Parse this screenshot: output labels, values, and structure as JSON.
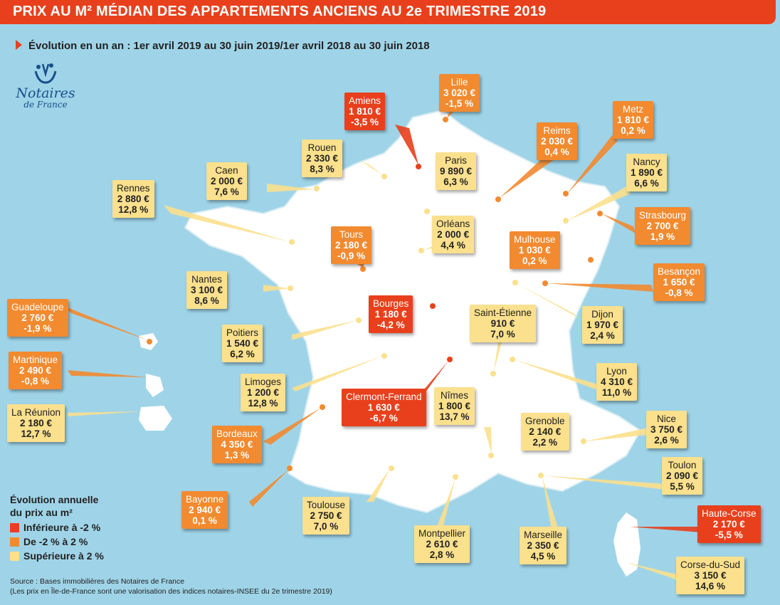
{
  "title": "PRIX AU M² MÉDIAN DES APPARTEMENTS ANCIENS AU 2e TRIMESTRE 2019",
  "subtitle": "Évolution en un an : 1er avril 2019 au 30 juin 2019/1er avril 2018 au 30 juin 2018",
  "logo": {
    "line1": "Notaires",
    "line2": "de France"
  },
  "colors": {
    "red": "#e8401c",
    "orange": "#f28a30",
    "yellow": "#fbe08d",
    "sea": "#9fd4e8",
    "land": "#ffffff"
  },
  "cities": [
    {
      "name": "Amiens",
      "price": "1 810 €",
      "change": "-3,5 %",
      "category": "red"
    },
    {
      "name": "Lille",
      "price": "3 020 €",
      "change": "-1,5 %",
      "category": "orange"
    },
    {
      "name": "Metz",
      "price": "1 810 €",
      "change": "0,2 %",
      "category": "orange"
    },
    {
      "name": "Reims",
      "price": "2 030 €",
      "change": "0,4 %",
      "category": "orange"
    },
    {
      "name": "Rouen",
      "price": "2 330 €",
      "change": "8,3 %",
      "category": "yellow"
    },
    {
      "name": "Paris",
      "price": "9 890 €",
      "change": "6,3 %",
      "category": "yellow"
    },
    {
      "name": "Caen",
      "price": "2 000 €",
      "change": "7,6 %",
      "category": "yellow"
    },
    {
      "name": "Nancy",
      "price": "1 890 €",
      "change": "6,6 %",
      "category": "yellow"
    },
    {
      "name": "Rennes",
      "price": "2 880 €",
      "change": "12,8 %",
      "category": "yellow"
    },
    {
      "name": "Strasbourg",
      "price": "2 700 €",
      "change": "1,9 %",
      "category": "orange"
    },
    {
      "name": "Tours",
      "price": "2 180 €",
      "change": "-0,9 %",
      "category": "orange"
    },
    {
      "name": "Orléans",
      "price": "2 000 €",
      "change": "4,4 %",
      "category": "yellow"
    },
    {
      "name": "Mulhouse",
      "price": "1 030 €",
      "change": "0,2 %",
      "category": "orange"
    },
    {
      "name": "Nantes",
      "price": "3 100 €",
      "change": "8,6 %",
      "category": "yellow"
    },
    {
      "name": "Besançon",
      "price": "1 650 €",
      "change": "-0,8 %",
      "category": "orange"
    },
    {
      "name": "Guadeloupe",
      "price": "2 760 €",
      "change": "-1,9 %",
      "category": "orange"
    },
    {
      "name": "Bourges",
      "price": "1 180 €",
      "change": "-4,2 %",
      "category": "red"
    },
    {
      "name": "Saint-Étienne",
      "price": "910 €",
      "change": "7,0 %",
      "category": "yellow"
    },
    {
      "name": "Dijon",
      "price": "1 970 €",
      "change": "2,4 %",
      "category": "yellow"
    },
    {
      "name": "Poitiers",
      "price": "1 540 €",
      "change": "6,2 %",
      "category": "yellow"
    },
    {
      "name": "Martinique",
      "price": "2 490 €",
      "change": "-0,8 %",
      "category": "orange"
    },
    {
      "name": "Limoges",
      "price": "1 200 €",
      "change": "12,8 %",
      "category": "yellow"
    },
    {
      "name": "Lyon",
      "price": "4 310 €",
      "change": "11,0 %",
      "category": "yellow"
    },
    {
      "name": "Clermont-Ferrand",
      "price": "1 630 €",
      "change": "-6,7 %",
      "category": "red"
    },
    {
      "name": "Nîmes",
      "price": "1 800 €",
      "change": "13,7 %",
      "category": "yellow"
    },
    {
      "name": "La Réunion",
      "price": "2 180 €",
      "change": "12,7 %",
      "category": "yellow"
    },
    {
      "name": "Nice",
      "price": "3 750 €",
      "change": "2,6 %",
      "category": "yellow"
    },
    {
      "name": "Bordeaux",
      "price": "4 350 €",
      "change": "1,3 %",
      "category": "orange"
    },
    {
      "name": "Grenoble",
      "price": "2 140 €",
      "change": "2,2 %",
      "category": "yellow"
    },
    {
      "name": "Toulon",
      "price": "2 090 €",
      "change": "5,5 %",
      "category": "yellow"
    },
    {
      "name": "Bayonne",
      "price": "2 940 €",
      "change": "0,1 %",
      "category": "orange"
    },
    {
      "name": "Toulouse",
      "price": "2 750 €",
      "change": "7,0 %",
      "category": "yellow"
    },
    {
      "name": "Haute-Corse",
      "price": "2 170 €",
      "change": "-5,5 %",
      "category": "red"
    },
    {
      "name": "Montpellier",
      "price": "2 610 €",
      "change": "2,8 %",
      "category": "yellow"
    },
    {
      "name": "Marseille",
      "price": "2 350 €",
      "change": "4,5 %",
      "category": "yellow"
    },
    {
      "name": "Corse-du-Sud",
      "price": "3 150 €",
      "change": "14,6 %",
      "category": "yellow"
    }
  ],
  "legend": {
    "title_line1": "Évolution annuelle",
    "title_line2": "du prix au m²",
    "items": [
      {
        "label": "Inférieure à -2 %",
        "color": "#e8401c"
      },
      {
        "label": "De -2 % à 2 %",
        "color": "#f28a30"
      },
      {
        "label": "Supérieure à 2 %",
        "color": "#fbe08d"
      }
    ]
  },
  "source": {
    "line1": "Source : Bases immobilières des Notaires de France",
    "line2": "(Les prix en Île-de-France sont une valorisation des indices notaires-INSEE du 2e trimestre 2019)"
  }
}
